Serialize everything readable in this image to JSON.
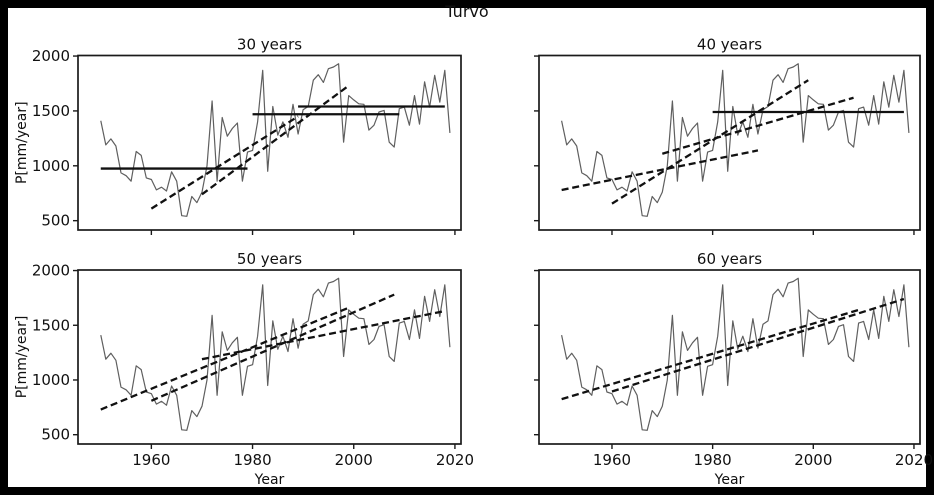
{
  "figure": {
    "title": "Turvo"
  },
  "colors": {
    "background": "#ffffff",
    "outer_border": "#000000",
    "series_line": "#5f5f5f",
    "fit_line": "#111111",
    "spine": "#1a1a1a"
  },
  "chart_data": {
    "type": "line",
    "title": "Turvo",
    "xlabel": "Year",
    "ylabel": "P[mm/year]",
    "xticks": [
      1960,
      1980,
      2000,
      2020
    ],
    "yticks": [
      500,
      1000,
      1500,
      2000
    ],
    "xlim": [
      1945.5,
      2021.2
    ],
    "ylim": [
      415,
      2005
    ],
    "grid": false,
    "legend": "none",
    "series_start_year": 1950,
    "annual_precipitation": [
      1410,
      1190,
      1245,
      1180,
      935,
      910,
      860,
      1130,
      1095,
      890,
      875,
      780,
      805,
      770,
      945,
      860,
      545,
      540,
      720,
      665,
      760,
      1000,
      1590,
      860,
      1440,
      1270,
      1340,
      1390,
      860,
      1125,
      1140,
      1400,
      1870,
      950,
      1540,
      1280,
      1400,
      1260,
      1560,
      1290,
      1510,
      1540,
      1780,
      1830,
      1760,
      1885,
      1900,
      1930,
      1215,
      1640,
      1600,
      1565,
      1560,
      1325,
      1370,
      1490,
      1505,
      1215,
      1170,
      1520,
      1535,
      1370,
      1640,
      1380,
      1765,
      1535,
      1825,
      1580,
      1870,
      1300
    ],
    "subplots": [
      {
        "title": "30 years",
        "fit_lines": [
          {
            "window": "1950-1979",
            "years": [
              1950,
              1979
            ],
            "values": [
              975,
              975
            ],
            "dashed": false
          },
          {
            "window": "1960-1989",
            "years": [
              1960,
              1989
            ],
            "values": [
              610,
              1450
            ],
            "dashed": true
          },
          {
            "window": "1970-1999",
            "years": [
              1970,
              1999
            ],
            "values": [
              740,
              1730
            ],
            "dashed": true
          },
          {
            "window": "1980-2009",
            "years": [
              1980,
              2009
            ],
            "values": [
              1470,
              1470
            ],
            "dashed": false
          },
          {
            "window": "1990-2019",
            "years": [
              1989,
              2018
            ],
            "values": [
              1540,
              1540
            ],
            "dashed": false
          }
        ]
      },
      {
        "title": "40 years",
        "fit_lines": [
          {
            "window": "1950-1989",
            "years": [
              1950,
              1989
            ],
            "values": [
              780,
              1140
            ],
            "dashed": true
          },
          {
            "window": "1960-1999",
            "years": [
              1960,
              1999
            ],
            "values": [
              655,
              1780
            ],
            "dashed": true
          },
          {
            "window": "1970-2009",
            "years": [
              1970,
              2008
            ],
            "values": [
              1110,
              1620
            ],
            "dashed": true
          },
          {
            "window": "1980-2019",
            "years": [
              1980,
              2018
            ],
            "values": [
              1490,
              1490
            ],
            "dashed": false
          }
        ]
      },
      {
        "title": "50 years",
        "fit_lines": [
          {
            "window": "1950-1999",
            "years": [
              1950,
              1999
            ],
            "values": [
              730,
              1660
            ],
            "dashed": true
          },
          {
            "window": "1960-2009",
            "years": [
              1960,
              2008
            ],
            "values": [
              810,
              1780
            ],
            "dashed": true
          },
          {
            "window": "1970-2019",
            "years": [
              1970,
              2018
            ],
            "values": [
              1190,
              1630
            ],
            "dashed": true
          }
        ]
      },
      {
        "title": "60 years",
        "fit_lines": [
          {
            "window": "1950-2009",
            "years": [
              1950,
              2009
            ],
            "values": [
              825,
              1640
            ],
            "dashed": true
          },
          {
            "window": "1960-2019",
            "years": [
              1960,
              2018
            ],
            "values": [
              895,
              1740
            ],
            "dashed": true
          }
        ]
      }
    ]
  }
}
